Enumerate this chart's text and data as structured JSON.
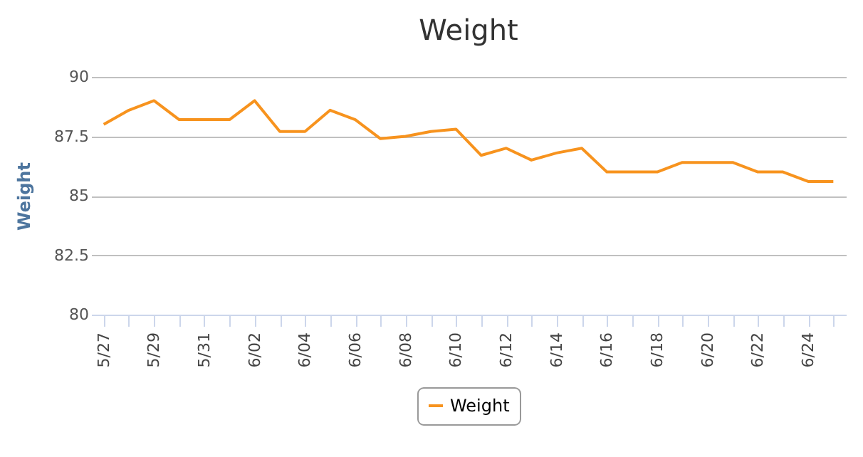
{
  "chart_data": {
    "type": "line",
    "title": "Weight",
    "ylabel": "Weight",
    "categories": [
      "5/27",
      null,
      "5/29",
      null,
      "5/31",
      null,
      "6/02",
      null,
      "6/04",
      null,
      "6/06",
      null,
      "6/08",
      null,
      "6/10",
      null,
      "6/12",
      null,
      "6/14",
      null,
      "6/16",
      null,
      "6/18",
      null,
      "6/20",
      null,
      "6/22",
      null,
      "6/24",
      null
    ],
    "series": [
      {
        "name": "Weight",
        "color": "#f7931e",
        "values": [
          88.0,
          88.6,
          89.0,
          88.2,
          88.2,
          88.2,
          89.0,
          87.7,
          87.7,
          88.6,
          88.2,
          87.4,
          87.5,
          87.7,
          87.8,
          86.7,
          87.0,
          86.5,
          86.8,
          87.0,
          86.0,
          86.0,
          86.0,
          86.4,
          86.4,
          86.4,
          86.0,
          86.0,
          85.6,
          85.6
        ]
      }
    ],
    "ylim": [
      80,
      90
    ],
    "yticks": [
      80,
      82.5,
      85,
      87.5,
      90
    ],
    "grid": "y",
    "legend": "bottom",
    "marker": "none"
  }
}
